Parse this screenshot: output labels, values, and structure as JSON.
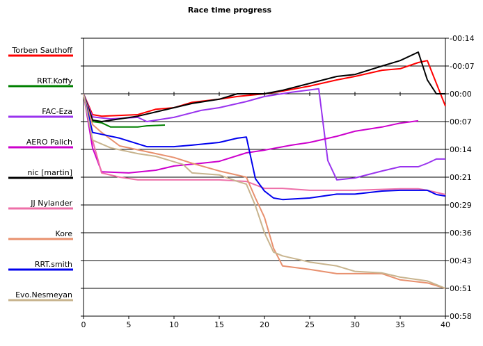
{
  "chart_data": {
    "type": "line",
    "title": "Race time progress",
    "xlabel": "",
    "ylabel": "",
    "xlim": [
      0,
      40
    ],
    "ylim_seconds": [
      -14.4,
      57.6
    ],
    "x_ticks": [
      "0",
      "5",
      "10",
      "15",
      "20",
      "25",
      "30",
      "35",
      "40"
    ],
    "y_ticks": [
      "-00:14",
      "-00:07",
      "00:00",
      "00:07",
      "00:14",
      "00:21",
      "00:29",
      "00:36",
      "00:43",
      "00:51",
      "00:58"
    ],
    "grid": true,
    "legend_position": "left",
    "series": [
      {
        "name": "Torben Sauthoff",
        "color": "#ff0000",
        "points": [
          [
            0,
            0
          ],
          [
            1,
            5.4
          ],
          [
            2,
            5.8
          ],
          [
            6,
            5.4
          ],
          [
            8,
            4
          ],
          [
            10,
            3.6
          ],
          [
            12,
            2.2
          ],
          [
            15,
            1.4
          ],
          [
            17,
            0.7
          ],
          [
            20,
            0
          ],
          [
            22,
            -0.7
          ],
          [
            25,
            -2
          ],
          [
            28,
            -3.6
          ],
          [
            30,
            -4.5
          ],
          [
            33,
            -6.1
          ],
          [
            35,
            -6.5
          ],
          [
            37,
            -8.1
          ],
          [
            38,
            -8.6
          ],
          [
            40,
            3.2
          ]
        ]
      },
      {
        "name": "RRT.Koffy",
        "color": "#008000",
        "points": [
          [
            0,
            0
          ],
          [
            1,
            7.2
          ],
          [
            2,
            7.5
          ],
          [
            3,
            8.6
          ],
          [
            6,
            8.6
          ],
          [
            7,
            8.3
          ],
          [
            9,
            8.1
          ]
        ]
      },
      {
        "name": "FAC-Eza",
        "color": "#9933ee",
        "points": [
          [
            0,
            0
          ],
          [
            1,
            6
          ],
          [
            3,
            6.5
          ],
          [
            6,
            6.1
          ],
          [
            7,
            7.2
          ],
          [
            10,
            6.1
          ],
          [
            13,
            4.3
          ],
          [
            15,
            3.6
          ],
          [
            18,
            2
          ],
          [
            20,
            0.7
          ],
          [
            23,
            -0.4
          ],
          [
            26,
            -1.3
          ],
          [
            27,
            17.3
          ],
          [
            28,
            22.3
          ],
          [
            30,
            21.8
          ],
          [
            33,
            20
          ],
          [
            35,
            18.9
          ],
          [
            37,
            18.9
          ],
          [
            38,
            18
          ],
          [
            39,
            16.9
          ],
          [
            40,
            16.9
          ]
        ]
      },
      {
        "name": "AERO  Palich",
        "color": "#cc00cc",
        "points": [
          [
            0,
            0
          ],
          [
            1,
            14
          ],
          [
            2,
            20.2
          ],
          [
            5,
            20.5
          ],
          [
            8,
            19.8
          ],
          [
            10,
            18.7
          ],
          [
            13,
            18
          ],
          [
            15,
            17.5
          ],
          [
            18,
            15.3
          ],
          [
            20,
            14.6
          ],
          [
            23,
            13.3
          ],
          [
            25,
            12.6
          ],
          [
            28,
            11
          ],
          [
            30,
            9.7
          ],
          [
            33,
            8.6
          ],
          [
            35,
            7.6
          ],
          [
            37,
            7
          ]
        ]
      },
      {
        "name": "nic [martin]",
        "color": "#000000",
        "points": [
          [
            0,
            0
          ],
          [
            1,
            6.8
          ],
          [
            2,
            7.2
          ],
          [
            4,
            6.5
          ],
          [
            6,
            5.8
          ],
          [
            8,
            4.7
          ],
          [
            10,
            3.6
          ],
          [
            12,
            2.5
          ],
          [
            15,
            1.4
          ],
          [
            17,
            0
          ],
          [
            20,
            0
          ],
          [
            22,
            -0.9
          ],
          [
            25,
            -2.7
          ],
          [
            28,
            -4.5
          ],
          [
            30,
            -5
          ],
          [
            33,
            -7.2
          ],
          [
            35,
            -8.6
          ],
          [
            37,
            -10.8
          ],
          [
            38,
            -3.6
          ],
          [
            39,
            0
          ],
          [
            40,
            0
          ]
        ]
      },
      {
        "name": "JJ Nylander",
        "color": "#ee6fa8",
        "points": [
          [
            0,
            0
          ],
          [
            1,
            12
          ],
          [
            2,
            20.5
          ],
          [
            4,
            21.6
          ],
          [
            6,
            22.3
          ],
          [
            10,
            22.3
          ],
          [
            15,
            22.3
          ],
          [
            18,
            22.7
          ],
          [
            20,
            24.5
          ],
          [
            22,
            24.5
          ],
          [
            25,
            25
          ],
          [
            30,
            25
          ],
          [
            35,
            24.6
          ],
          [
            37,
            24.6
          ],
          [
            38,
            25
          ],
          [
            40,
            26.1
          ]
        ]
      },
      {
        "name": "Kore",
        "color": "#e8906e",
        "points": [
          [
            0,
            0
          ],
          [
            1,
            8
          ],
          [
            2,
            10
          ],
          [
            4,
            13.5
          ],
          [
            8,
            15.5
          ],
          [
            10,
            16.5
          ],
          [
            12,
            18
          ],
          [
            15,
            20
          ],
          [
            18,
            21.6
          ],
          [
            19,
            27
          ],
          [
            20,
            32
          ],
          [
            21,
            40
          ],
          [
            22,
            44.6
          ],
          [
            25,
            45.5
          ],
          [
            28,
            46.6
          ],
          [
            30,
            46.6
          ],
          [
            33,
            46.6
          ],
          [
            35,
            48.2
          ],
          [
            38,
            49
          ],
          [
            40,
            50.4
          ]
        ]
      },
      {
        "name": "RRT.smith",
        "color": "#0000ee",
        "points": [
          [
            0,
            0
          ],
          [
            1,
            10
          ],
          [
            2,
            10.5
          ],
          [
            4,
            11.5
          ],
          [
            7,
            13.7
          ],
          [
            10,
            13.7
          ],
          [
            12,
            13.3
          ],
          [
            15,
            12.6
          ],
          [
            17,
            11.5
          ],
          [
            18,
            11.2
          ],
          [
            19,
            22
          ],
          [
            20,
            25.2
          ],
          [
            21,
            27
          ],
          [
            22,
            27.4
          ],
          [
            25,
            27
          ],
          [
            28,
            26
          ],
          [
            30,
            26
          ],
          [
            33,
            25.2
          ],
          [
            35,
            25
          ],
          [
            38,
            25
          ],
          [
            39,
            26.1
          ],
          [
            40,
            26.5
          ]
        ]
      },
      {
        "name": "Evo.Nesmeyan",
        "color": "#c8b48e",
        "points": [
          [
            0,
            0
          ],
          [
            1,
            12
          ],
          [
            3,
            14
          ],
          [
            6,
            15.5
          ],
          [
            8,
            16.2
          ],
          [
            10,
            17.6
          ],
          [
            11,
            18.3
          ],
          [
            12,
            20.5
          ],
          [
            15,
            21
          ],
          [
            17,
            22.7
          ],
          [
            18,
            23.4
          ],
          [
            19,
            29
          ],
          [
            20,
            36
          ],
          [
            21,
            41
          ],
          [
            22,
            42
          ],
          [
            25,
            43.6
          ],
          [
            28,
            44.6
          ],
          [
            30,
            46
          ],
          [
            33,
            46.4
          ],
          [
            35,
            47.5
          ],
          [
            38,
            48.5
          ],
          [
            40,
            50.4
          ]
        ]
      }
    ]
  }
}
